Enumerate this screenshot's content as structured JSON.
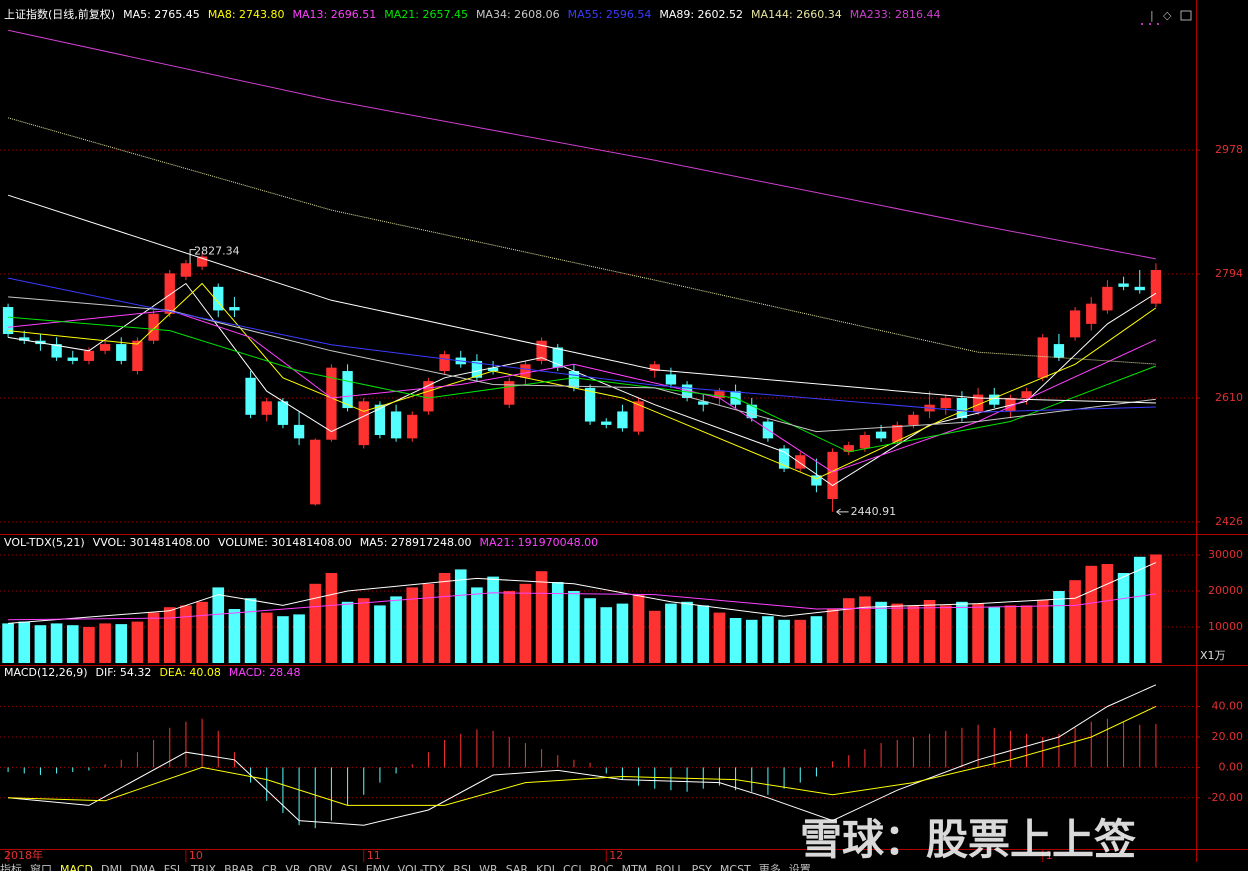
{
  "header": {
    "title": "上证指数(日线,前复权)"
  },
  "chart_data": [
    {
      "type": "candlestick",
      "up_color": "#ff3232",
      "down_color": "#54ffff",
      "ylim": [
        2411,
        3189
      ],
      "yticks": [
        2426,
        2610,
        2794,
        2978
      ],
      "grid": true,
      "open": [
        2745,
        2700,
        2695,
        2690,
        2670,
        2665,
        2680,
        2690,
        2650,
        2695,
        2735,
        2790,
        2805,
        2775,
        2745,
        2640,
        2585,
        2605,
        2570,
        2452,
        2548,
        2650,
        2540,
        2600,
        2590,
        2550,
        2590,
        2650,
        2670,
        2665,
        2655,
        2600,
        2640,
        2665,
        2685,
        2650,
        2625,
        2575,
        2590,
        2560,
        2650,
        2645,
        2630,
        2605,
        2610,
        2620,
        2600,
        2575,
        2535,
        2505,
        2495,
        2460,
        2530,
        2535,
        2560,
        2545,
        2570,
        2590,
        2595,
        2610,
        2590,
        2615,
        2590,
        2610,
        2640,
        2690,
        2700,
        2720,
        2740,
        2780,
        2775,
        2750
      ],
      "high": [
        2750,
        2710,
        2705,
        2700,
        2680,
        2685,
        2695,
        2700,
        2700,
        2740,
        2800,
        2815,
        2827.34,
        2780,
        2760,
        2650,
        2610,
        2610,
        2590,
        2550,
        2660,
        2660,
        2610,
        2605,
        2600,
        2590,
        2640,
        2680,
        2680,
        2675,
        2665,
        2640,
        2665,
        2700,
        2690,
        2660,
        2630,
        2580,
        2600,
        2610,
        2665,
        2655,
        2635,
        2615,
        2625,
        2630,
        2610,
        2580,
        2540,
        2530,
        2520,
        2535,
        2545,
        2560,
        2570,
        2575,
        2590,
        2620,
        2615,
        2620,
        2625,
        2625,
        2615,
        2625,
        2705,
        2705,
        2745,
        2760,
        2785,
        2790,
        2800,
        2810
      ],
      "low": [
        2700,
        2690,
        2680,
        2665,
        2660,
        2660,
        2675,
        2660,
        2645,
        2690,
        2730,
        2785,
        2800,
        2730,
        2730,
        2580,
        2575,
        2565,
        2540,
        2450,
        2545,
        2590,
        2535,
        2550,
        2545,
        2545,
        2585,
        2645,
        2655,
        2635,
        2645,
        2595,
        2630,
        2660,
        2650,
        2620,
        2570,
        2565,
        2560,
        2555,
        2640,
        2625,
        2605,
        2590,
        2600,
        2595,
        2575,
        2545,
        2500,
        2500,
        2470,
        2440.91,
        2525,
        2530,
        2545,
        2540,
        2565,
        2580,
        2585,
        2575,
        2585,
        2595,
        2580,
        2600,
        2635,
        2665,
        2695,
        2710,
        2735,
        2770,
        2765,
        2745
      ],
      "close": [
        2705,
        2695,
        2690,
        2670,
        2665,
        2680,
        2690,
        2665,
        2695,
        2735,
        2795,
        2810,
        2820,
        2740,
        2740,
        2585,
        2605,
        2570,
        2550,
        2548,
        2655,
        2595,
        2605,
        2555,
        2550,
        2585,
        2635,
        2675,
        2660,
        2640,
        2650,
        2635,
        2660,
        2695,
        2655,
        2625,
        2575,
        2570,
        2565,
        2605,
        2660,
        2630,
        2610,
        2600,
        2620,
        2600,
        2580,
        2550,
        2505,
        2525,
        2480,
        2530,
        2540,
        2555,
        2550,
        2570,
        2585,
        2600,
        2610,
        2580,
        2615,
        2600,
        2610,
        2620,
        2700,
        2670,
        2740,
        2750,
        2775,
        2775,
        2770,
        2800
      ],
      "lines": [
        {
          "label": "MA5: 2765.45",
          "color": "#ffffff",
          "x": [
            0,
            5,
            11,
            16,
            20,
            27,
            33,
            40,
            48,
            51,
            57,
            63,
            68,
            71
          ],
          "values": [
            2700,
            2680,
            2780,
            2620,
            2560,
            2640,
            2670,
            2600,
            2530,
            2480,
            2570,
            2605,
            2720,
            2765.45
          ]
        },
        {
          "label": "MA8: 2743.80",
          "color": "#ffff00",
          "x": [
            0,
            8,
            12,
            17,
            22,
            30,
            38,
            50,
            58,
            66,
            71
          ],
          "values": [
            2710,
            2690,
            2780,
            2640,
            2590,
            2650,
            2610,
            2490,
            2580,
            2660,
            2743.8
          ]
        },
        {
          "label": "MA13: 2696.51",
          "color": "#ff40ff",
          "x": [
            0,
            10,
            15,
            20,
            28,
            35,
            44,
            51,
            60,
            71
          ],
          "values": [
            2715,
            2740,
            2700,
            2610,
            2630,
            2660,
            2610,
            2500,
            2575,
            2696.51
          ]
        },
        {
          "label": "MA21: 2657.45",
          "color": "#00e600",
          "x": [
            0,
            10,
            18,
            26,
            35,
            45,
            52,
            62,
            71
          ],
          "values": [
            2730,
            2710,
            2650,
            2610,
            2640,
            2610,
            2530,
            2575,
            2657.45
          ]
        },
        {
          "label": "MA34: 2608.06",
          "color": "#c8c8c8",
          "x": [
            0,
            10,
            20,
            30,
            40,
            50,
            60,
            71
          ],
          "values": [
            2760,
            2740,
            2680,
            2630,
            2625,
            2560,
            2575,
            2608.06
          ]
        },
        {
          "label": "MA55: 2596.54",
          "color": "#3c3cff",
          "x": [
            0,
            20,
            40,
            60,
            71
          ],
          "values": [
            2788,
            2689,
            2629,
            2589,
            2596.54
          ]
        },
        {
          "label": "MA89: 2602.52",
          "color": "#ffffff",
          "x": [
            0,
            20,
            40,
            60,
            71
          ],
          "values": [
            2911,
            2755,
            2652,
            2610,
            2602.52
          ]
        },
        {
          "label": "MA144: 2660.34",
          "color": "#e6e6a0",
          "x": [
            0,
            20,
            40,
            60,
            71
          ],
          "values": [
            3026,
            2889,
            2785,
            2678,
            2660.34
          ]
        },
        {
          "label": "MA233: 2816.44",
          "color": "#d040d0",
          "x": [
            0,
            20,
            40,
            60,
            71
          ],
          "values": [
            3156,
            3052,
            2963,
            2867,
            2816.44
          ]
        }
      ],
      "annotations": [
        "2827.34",
        "2440.91"
      ]
    },
    {
      "type": "volume",
      "title": "VOL-TDX(5,21)",
      "legend": [
        {
          "text": "VVOL: 301481408.00",
          "color": "#ffffff"
        },
        {
          "text": "VOLUME: 301481408.00",
          "color": "#ffffff"
        }
      ],
      "ylim": [
        0,
        35000
      ],
      "yticks": [
        10000,
        20000,
        30000
      ],
      "unit": "X1万",
      "grid": true,
      "values": [
        11000,
        11500,
        10500,
        11000,
        10500,
        10000,
        11000,
        10800,
        11500,
        14000,
        15500,
        16000,
        17000,
        21000,
        15000,
        18000,
        14000,
        13000,
        13500,
        22000,
        25000,
        17000,
        18000,
        16000,
        18500,
        21000,
        22000,
        25000,
        26000,
        21000,
        24000,
        20000,
        22000,
        25500,
        22500,
        20000,
        18000,
        15500,
        16500,
        19000,
        14500,
        16500,
        17000,
        16000,
        14000,
        12500,
        12000,
        13000,
        12000,
        12000,
        13000,
        15000,
        18000,
        18500,
        17000,
        16500,
        16000,
        17500,
        16000,
        17000,
        16500,
        15500,
        16000,
        16000,
        17500,
        20000,
        23000,
        27000,
        27500,
        25000,
        29500,
        30148
      ],
      "lines": [
        {
          "label": "MA5: 278917248.00",
          "color": "#ffffff",
          "x": [
            0,
            10,
            13,
            17,
            21,
            29,
            35,
            41,
            48,
            53,
            60,
            66,
            71
          ],
          "values": [
            11000,
            14500,
            19000,
            16000,
            20000,
            23500,
            22000,
            17000,
            13000,
            15500,
            16500,
            18000,
            27892
          ]
        },
        {
          "label": "MA21: 191970048.00",
          "color": "#ff40ff",
          "x": [
            0,
            10,
            20,
            30,
            40,
            50,
            60,
            66,
            71
          ],
          "values": [
            12000,
            12500,
            16000,
            19500,
            19000,
            15000,
            15500,
            16000,
            19197
          ]
        }
      ]
    },
    {
      "type": "macd",
      "title": "MACD(12,26,9)",
      "legend": [
        {
          "text": "MACD: 28.48",
          "color": "#ff40ff"
        }
      ],
      "ylim": [
        -53,
        66
      ],
      "grid": true,
      "yticks": [
        {
          "value": -20,
          "label": "-20.00"
        },
        {
          "value": 0,
          "label": "0.00"
        },
        {
          "value": 20,
          "label": "20.00"
        },
        {
          "value": 40,
          "label": "40.00"
        }
      ],
      "values": [
        -3,
        -4,
        -5,
        -4,
        -3,
        -2,
        2,
        5,
        10,
        18,
        26,
        30,
        32,
        24,
        10,
        -10,
        -22,
        -30,
        -38,
        -40,
        -35,
        -25,
        -18,
        -10,
        -4,
        2,
        10,
        18,
        22,
        25,
        24,
        20,
        16,
        12,
        8,
        5,
        3,
        -4,
        -8,
        -12,
        -14,
        -15,
        -16,
        -14,
        -12,
        -15,
        -16,
        -18,
        -14,
        -10,
        -6,
        4,
        8,
        12,
        16,
        18,
        20,
        22,
        24,
        26,
        28,
        26,
        24,
        22,
        20,
        22,
        26,
        30,
        32,
        30,
        28,
        28.48
      ],
      "lines": [
        {
          "label": "DIF: 54.32",
          "color": "#ffffff",
          "x": [
            0,
            5,
            11,
            14,
            18,
            22,
            26,
            30,
            34,
            38,
            44,
            47,
            51,
            55,
            60,
            65,
            68,
            71
          ],
          "values": [
            -20,
            -25,
            10,
            5,
            -35,
            -38,
            -28,
            -5,
            -2,
            -8,
            -10,
            -20,
            -35,
            -15,
            5,
            20,
            40,
            54.32
          ]
        },
        {
          "label": "DEA: 40.08",
          "color": "#ffff00",
          "x": [
            0,
            6,
            12,
            16,
            21,
            27,
            32,
            38,
            45,
            51,
            56,
            62,
            67,
            71
          ],
          "values": [
            -20,
            -22,
            0,
            -8,
            -25,
            -25,
            -10,
            -6,
            -8,
            -18,
            -10,
            5,
            20,
            40.08
          ]
        }
      ]
    }
  ],
  "xticks": [
    {
      "value": 0,
      "label": "2018年"
    },
    {
      "value": 11,
      "label": "10"
    },
    {
      "value": 22,
      "label": "11"
    },
    {
      "value": 37,
      "label": "12"
    },
    {
      "value": 64,
      "label": "1"
    }
  ],
  "tabs": [
    "指标",
    "窗口",
    "MACD",
    "DMI",
    "DMA",
    "FSL",
    "TRIX",
    "BRAR",
    "CR",
    "VR",
    "OBV",
    "ASI",
    "EMV",
    "VOL-TDX",
    "RSI",
    "WR",
    "SAR",
    "KDJ",
    "CCI",
    "ROC",
    "MTM",
    "BOLL",
    "PSY",
    "MCST",
    "更多",
    "设置"
  ],
  "watermark": "雪球：股票上上签"
}
